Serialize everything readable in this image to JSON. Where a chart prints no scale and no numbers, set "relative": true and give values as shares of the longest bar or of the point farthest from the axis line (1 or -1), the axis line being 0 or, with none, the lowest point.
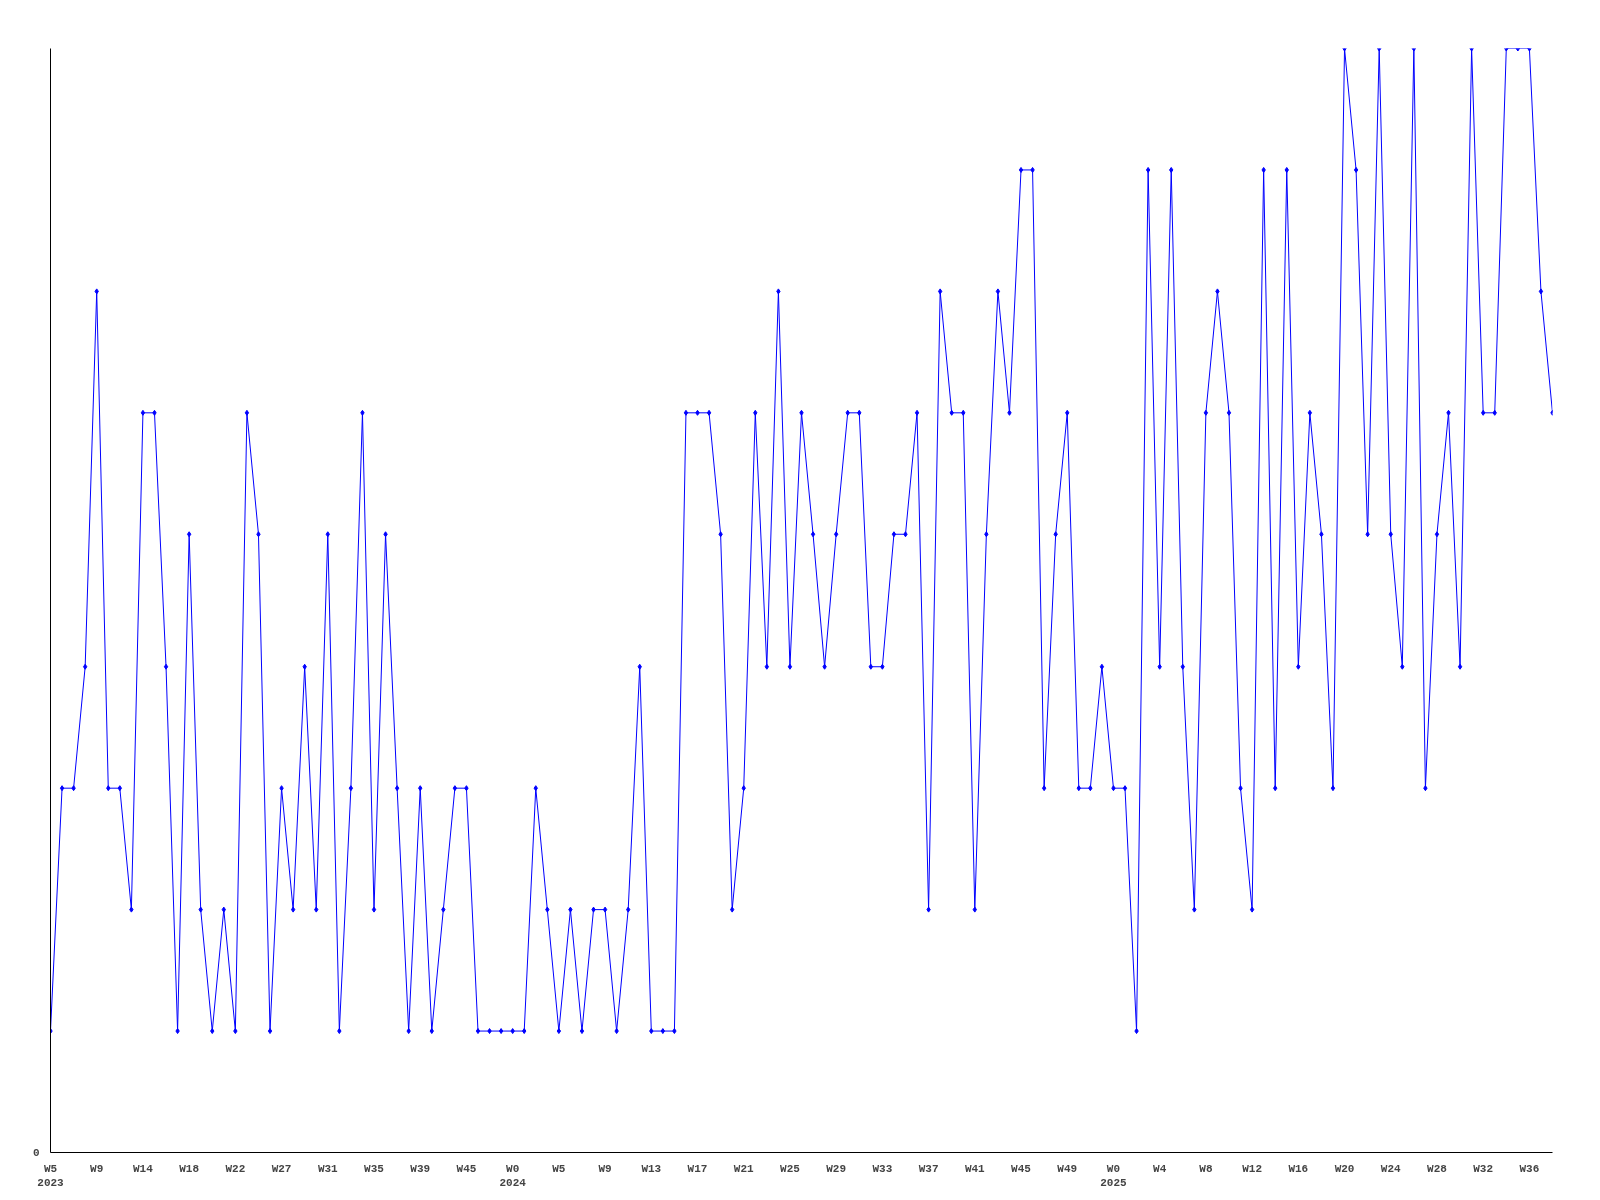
{
  "chart_data": {
    "type": "line",
    "relative": true,
    "series": [
      {
        "color": "#0000ff",
        "values": [
          0.11,
          0.33,
          0.33,
          0.44,
          0.78,
          0.33,
          0.33,
          0.22,
          0.67,
          0.67,
          0.44,
          0.11,
          0.56,
          0.22,
          0.11,
          0.22,
          0.11,
          0.67,
          0.56,
          0.11,
          0.33,
          0.22,
          0.44,
          0.22,
          0.56,
          0.11,
          0.33,
          0.67,
          0.22,
          0.56,
          0.33,
          0.11,
          0.33,
          0.11,
          0.22,
          0.33,
          0.33,
          0.11,
          0.11,
          0.11,
          0.11,
          0.11,
          0.33,
          0.22,
          0.11,
          0.22,
          0.11,
          0.22,
          0.22,
          0.11,
          0.22,
          0.44,
          0.11,
          0.11,
          0.11,
          0.67,
          0.67,
          0.67,
          0.56,
          0.22,
          0.33,
          0.67,
          0.44,
          0.78,
          0.44,
          0.67,
          0.56,
          0.44,
          0.56,
          0.67,
          0.67,
          0.44,
          0.44,
          0.56,
          0.56,
          0.67,
          0.22,
          0.78,
          0.67,
          0.67,
          0.22,
          0.56,
          0.78,
          0.67,
          0.89,
          0.89,
          0.33,
          0.56,
          0.67,
          0.33,
          0.33,
          0.44,
          0.33,
          0.33,
          0.11,
          0.89,
          0.44,
          0.89,
          0.44,
          0.22,
          0.67,
          0.78,
          0.67,
          0.33,
          0.22,
          0.89,
          0.33,
          0.89,
          0.44,
          0.67,
          0.56,
          0.33,
          1,
          0.89,
          0.56,
          1,
          0.56,
          0.44,
          1,
          0.33,
          0.56,
          0.67,
          0.44,
          1,
          0.67,
          0.67,
          1,
          1,
          1,
          0.78,
          0.67
        ]
      }
    ],
    "categories": [
      "W5\n2023",
      null,
      null,
      null,
      "W9",
      null,
      null,
      null,
      "W14",
      null,
      null,
      null,
      "W18",
      null,
      null,
      null,
      "W22",
      null,
      null,
      null,
      "W27",
      null,
      null,
      null,
      "W31",
      null,
      null,
      null,
      "W35",
      null,
      null,
      null,
      "W39",
      null,
      null,
      null,
      "W45",
      null,
      null,
      null,
      "W0\n2024",
      null,
      null,
      null,
      "W5",
      null,
      null,
      null,
      "W9",
      null,
      null,
      null,
      "W13",
      null,
      null,
      null,
      "W17",
      null,
      null,
      null,
      "W21",
      null,
      null,
      null,
      "W25",
      null,
      null,
      null,
      "W29",
      null,
      null,
      null,
      "W33",
      null,
      null,
      null,
      "W37",
      null,
      null,
      null,
      "W41",
      null,
      null,
      null,
      "W45",
      null,
      null,
      null,
      "W49",
      null,
      null,
      null,
      "W0\n2025",
      null,
      null,
      null,
      "W4",
      null,
      null,
      null,
      "W8",
      null,
      null,
      null,
      "W12",
      null,
      null,
      null,
      "W16",
      null,
      null,
      null,
      "W20",
      null,
      null,
      null,
      "W24",
      null,
      null,
      null,
      "W28",
      null,
      null,
      null,
      "W32",
      null,
      null,
      null,
      "W36",
      null,
      null
    ],
    "annotations": [
      "0"
    ],
    "marker": "diamond",
    "grid": false
  }
}
